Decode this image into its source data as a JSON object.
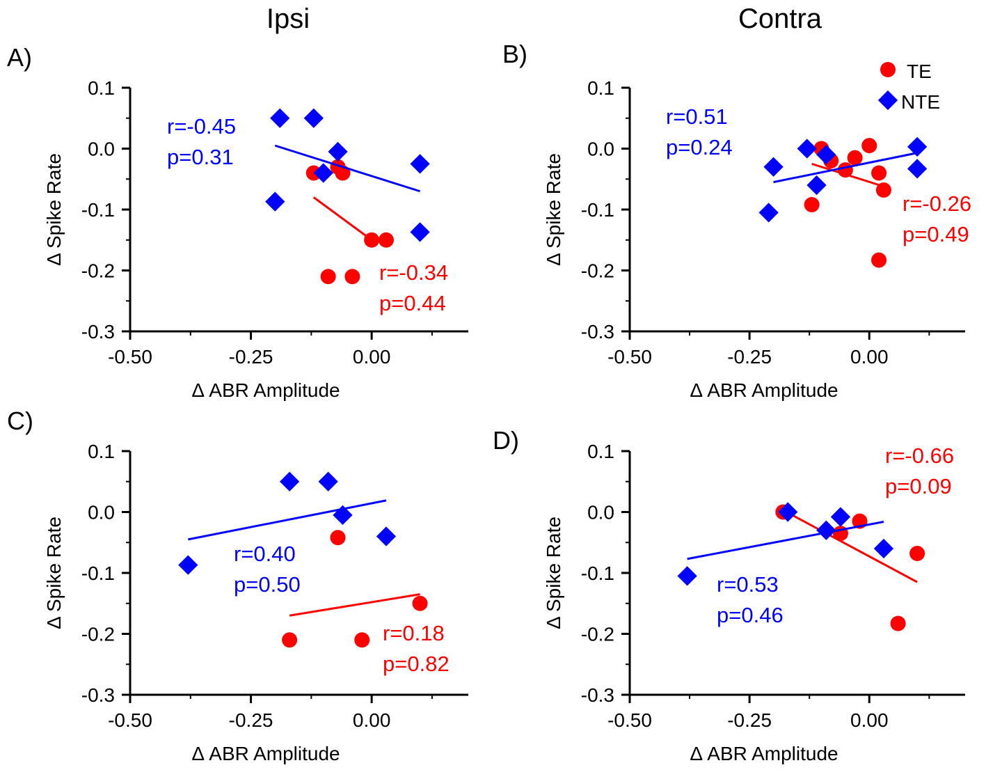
{
  "column_titles": {
    "left": "Ipsi",
    "right": "Contra"
  },
  "legend": {
    "te_label": "TE",
    "nte_label": "NTE",
    "te_color": "#ff0000",
    "nte_color": "#0000ff"
  },
  "chart_data": [
    {
      "type": "scatter",
      "panel_label": "A)",
      "xlabel": "Δ ABR Amplitude",
      "ylabel": "Δ Spike Rate",
      "xlim": [
        -0.5,
        0.2
      ],
      "ylim": [
        -0.3,
        0.1
      ],
      "xticks": [
        "-0.50",
        "-0.25",
        "0.00"
      ],
      "yticks": [
        "0.1",
        "0.0",
        "-0.1",
        "-0.2",
        "-0.3"
      ],
      "series": [
        {
          "name": "TE",
          "points": [
            [
              -0.12,
              -0.04
            ],
            [
              -0.07,
              -0.03
            ],
            [
              -0.06,
              -0.04
            ],
            [
              0.0,
              -0.15
            ],
            [
              0.03,
              -0.15
            ],
            [
              -0.09,
              -0.21
            ],
            [
              -0.04,
              -0.21
            ]
          ],
          "fit": [
            [
              -0.12,
              -0.08
            ],
            [
              0.0,
              -0.15
            ]
          ],
          "stats": [
            "r=-0.34",
            "p=0.44"
          ]
        },
        {
          "name": "NTE",
          "points": [
            [
              -0.19,
              0.05
            ],
            [
              -0.12,
              0.05
            ],
            [
              -0.07,
              -0.005
            ],
            [
              -0.1,
              -0.04
            ],
            [
              -0.2,
              -0.087
            ],
            [
              0.1,
              -0.025
            ],
            [
              0.1,
              -0.137
            ]
          ],
          "fit": [
            [
              -0.2,
              0.005
            ],
            [
              0.1,
              -0.07
            ]
          ],
          "stats": [
            "r=-0.45",
            "p=0.31"
          ]
        }
      ]
    },
    {
      "type": "scatter",
      "panel_label": "B)",
      "xlabel": "Δ ABR Amplitude",
      "ylabel": "Δ Spike Rate",
      "xlim": [
        -0.5,
        0.2
      ],
      "ylim": [
        -0.3,
        0.1
      ],
      "xticks": [
        "-0.50",
        "-0.25",
        "0.00"
      ],
      "yticks": [
        "0.1",
        "0.0",
        "-0.1",
        "-0.2",
        "-0.3"
      ],
      "series": [
        {
          "name": "TE",
          "points": [
            [
              -0.1,
              0.0
            ],
            [
              -0.08,
              -0.02
            ],
            [
              -0.05,
              -0.035
            ],
            [
              -0.03,
              -0.015
            ],
            [
              0.0,
              0.005
            ],
            [
              0.02,
              -0.04
            ],
            [
              0.03,
              -0.068
            ],
            [
              -0.12,
              -0.092
            ],
            [
              0.02,
              -0.183
            ]
          ],
          "fit": [
            [
              -0.12,
              -0.025
            ],
            [
              0.03,
              -0.062
            ]
          ],
          "stats": [
            "r=-0.26",
            "p=0.49"
          ]
        },
        {
          "name": "NTE",
          "points": [
            [
              -0.2,
              -0.03
            ],
            [
              -0.13,
              0.0
            ],
            [
              -0.09,
              -0.01
            ],
            [
              -0.11,
              -0.06
            ],
            [
              -0.21,
              -0.105
            ],
            [
              0.1,
              0.003
            ],
            [
              0.1,
              -0.033
            ]
          ],
          "fit": [
            [
              -0.2,
              -0.055
            ],
            [
              0.1,
              -0.007
            ]
          ],
          "stats": [
            "r=0.51",
            "p=0.24"
          ]
        }
      ]
    },
    {
      "type": "scatter",
      "panel_label": "C)",
      "xlabel": "Δ ABR Amplitude",
      "ylabel": "Δ Spike Rate",
      "xlim": [
        -0.5,
        0.2
      ],
      "ylim": [
        -0.3,
        0.1
      ],
      "xticks": [
        "-0.50",
        "-0.25",
        "0.00"
      ],
      "yticks": [
        "0.1",
        "0.0",
        "-0.1",
        "-0.2",
        "-0.3"
      ],
      "series": [
        {
          "name": "TE",
          "points": [
            [
              -0.07,
              -0.042
            ],
            [
              0.1,
              -0.15
            ],
            [
              -0.17,
              -0.21
            ],
            [
              -0.02,
              -0.21
            ]
          ],
          "fit": [
            [
              -0.17,
              -0.17
            ],
            [
              0.1,
              -0.135
            ]
          ],
          "stats": [
            "r=0.18",
            "p=0.82"
          ]
        },
        {
          "name": "NTE",
          "points": [
            [
              -0.17,
              0.05
            ],
            [
              -0.09,
              0.05
            ],
            [
              -0.06,
              -0.005
            ],
            [
              0.03,
              -0.04
            ],
            [
              -0.38,
              -0.087
            ]
          ],
          "fit": [
            [
              -0.38,
              -0.045
            ],
            [
              0.03,
              0.019
            ]
          ],
          "stats": [
            "r=0.40",
            "p=0.50"
          ]
        }
      ]
    },
    {
      "type": "scatter",
      "panel_label": "D)",
      "xlabel": "Δ ABR Amplitude",
      "ylabel": "Δ Spike Rate",
      "xlim": [
        -0.5,
        0.2
      ],
      "ylim": [
        -0.3,
        0.1
      ],
      "xticks": [
        "-0.50",
        "-0.25",
        "0.00"
      ],
      "yticks": [
        "0.1",
        "0.0",
        "-0.1",
        "-0.2",
        "-0.3"
      ],
      "series": [
        {
          "name": "TE",
          "points": [
            [
              -0.18,
              0.0
            ],
            [
              -0.02,
              -0.015
            ],
            [
              -0.06,
              -0.035
            ],
            [
              0.1,
              -0.068
            ],
            [
              0.06,
              -0.183
            ]
          ],
          "fit": [
            [
              -0.18,
              0.003
            ],
            [
              0.1,
              -0.115
            ]
          ],
          "stats": [
            "r=-0.66",
            "p=0.09"
          ]
        },
        {
          "name": "NTE",
          "points": [
            [
              -0.17,
              0.0
            ],
            [
              -0.06,
              -0.008
            ],
            [
              -0.09,
              -0.03
            ],
            [
              0.03,
              -0.06
            ],
            [
              -0.38,
              -0.105
            ]
          ],
          "fit": [
            [
              -0.38,
              -0.077
            ],
            [
              0.03,
              -0.016
            ]
          ],
          "stats": [
            "r=0.53",
            "p=0.46"
          ]
        }
      ]
    }
  ]
}
